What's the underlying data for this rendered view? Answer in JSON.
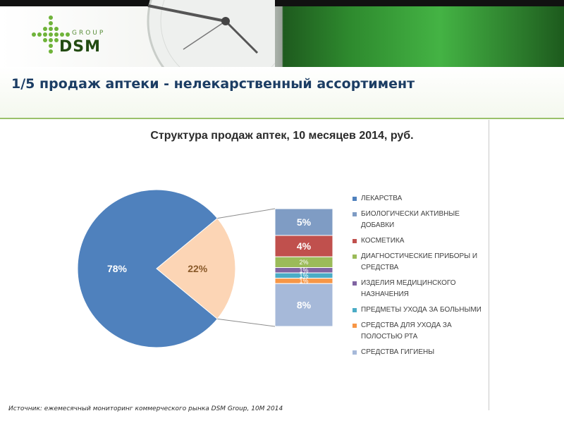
{
  "header": {
    "logo_group": "GROUP",
    "logo_name": "DSM",
    "title": "1/5 продаж аптеки - нелекарственный ассортимент"
  },
  "chart_data": {
    "type": "pie",
    "title": "Структура продаж аптек, 10 месяцев 2014, руб.",
    "pie": {
      "slices": [
        {
          "label": "ЛЕКАРСТВА",
          "value": 78,
          "display": "78%",
          "color": "#4f81bd"
        },
        {
          "label": "",
          "value": 22,
          "display": "22%",
          "color": "#fcd5b5"
        }
      ]
    },
    "breakdown": {
      "total": 22,
      "segments": [
        {
          "label": "БИОЛОГИЧЕСКИ АКТИВНЫЕ ДОБАВКИ",
          "value": 5,
          "display": "5%",
          "color": "#7f9cc4"
        },
        {
          "label": "КОСМЕТИКА",
          "value": 4,
          "display": "4%",
          "color": "#c0504d"
        },
        {
          "label": "ДИАГНОСТИЧЕСКИЕ ПРИБОРЫ И СРЕДСТВА",
          "value": 2,
          "display": "2%",
          "color": "#9bbb59"
        },
        {
          "label": "ИЗДЕЛИЯ МЕДИЦИНСКОГО НАЗНАЧЕНИЯ",
          "value": 1,
          "display": "1%",
          "color": "#8064a2"
        },
        {
          "label": "ПРЕДМЕТЫ УХОДА ЗА БОЛЬНЫМИ",
          "value": 1,
          "display": "1%",
          "color": "#4bacc6"
        },
        {
          "label": "СРЕДСТВА ДЛЯ УХОДА ЗА ПОЛОСТЬЮ РТА",
          "value": 1,
          "display": "1%",
          "color": "#f79646"
        },
        {
          "label": "СРЕДСТВА ГИГИЕНЫ",
          "value": 8,
          "display": "8%",
          "color": "#a6b9d9"
        }
      ]
    },
    "legend": [
      {
        "label": "ЛЕКАРСТВА",
        "color": "#4f81bd"
      },
      {
        "label": "БИОЛОГИЧЕСКИ АКТИВНЫЕ ДОБАВКИ",
        "color": "#7f9cc4"
      },
      {
        "label": "КОСМЕТИКА",
        "color": "#c0504d"
      },
      {
        "label": "ДИАГНОСТИЧЕСКИЕ ПРИБОРЫ И СРЕДСТВА",
        "color": "#9bbb59"
      },
      {
        "label": "ИЗДЕЛИЯ МЕДИЦИНСКОГО НАЗНАЧЕНИЯ",
        "color": "#8064a2"
      },
      {
        "label": "ПРЕДМЕТЫ УХОДА ЗА БОЛЬНЫМИ",
        "color": "#4bacc6"
      },
      {
        "label": "СРЕДСТВА ДЛЯ УХОДА ЗА ПОЛОСТЬЮ РТА",
        "color": "#f79646"
      },
      {
        "label": "СРЕДСТВА ГИГИЕНЫ",
        "color": "#a6b9d9"
      }
    ],
    "legend_position": "right"
  },
  "footer": {
    "source": "Источник: ежемесячный мониторинг коммерческого рынка DSM Group, 10M 2014"
  }
}
